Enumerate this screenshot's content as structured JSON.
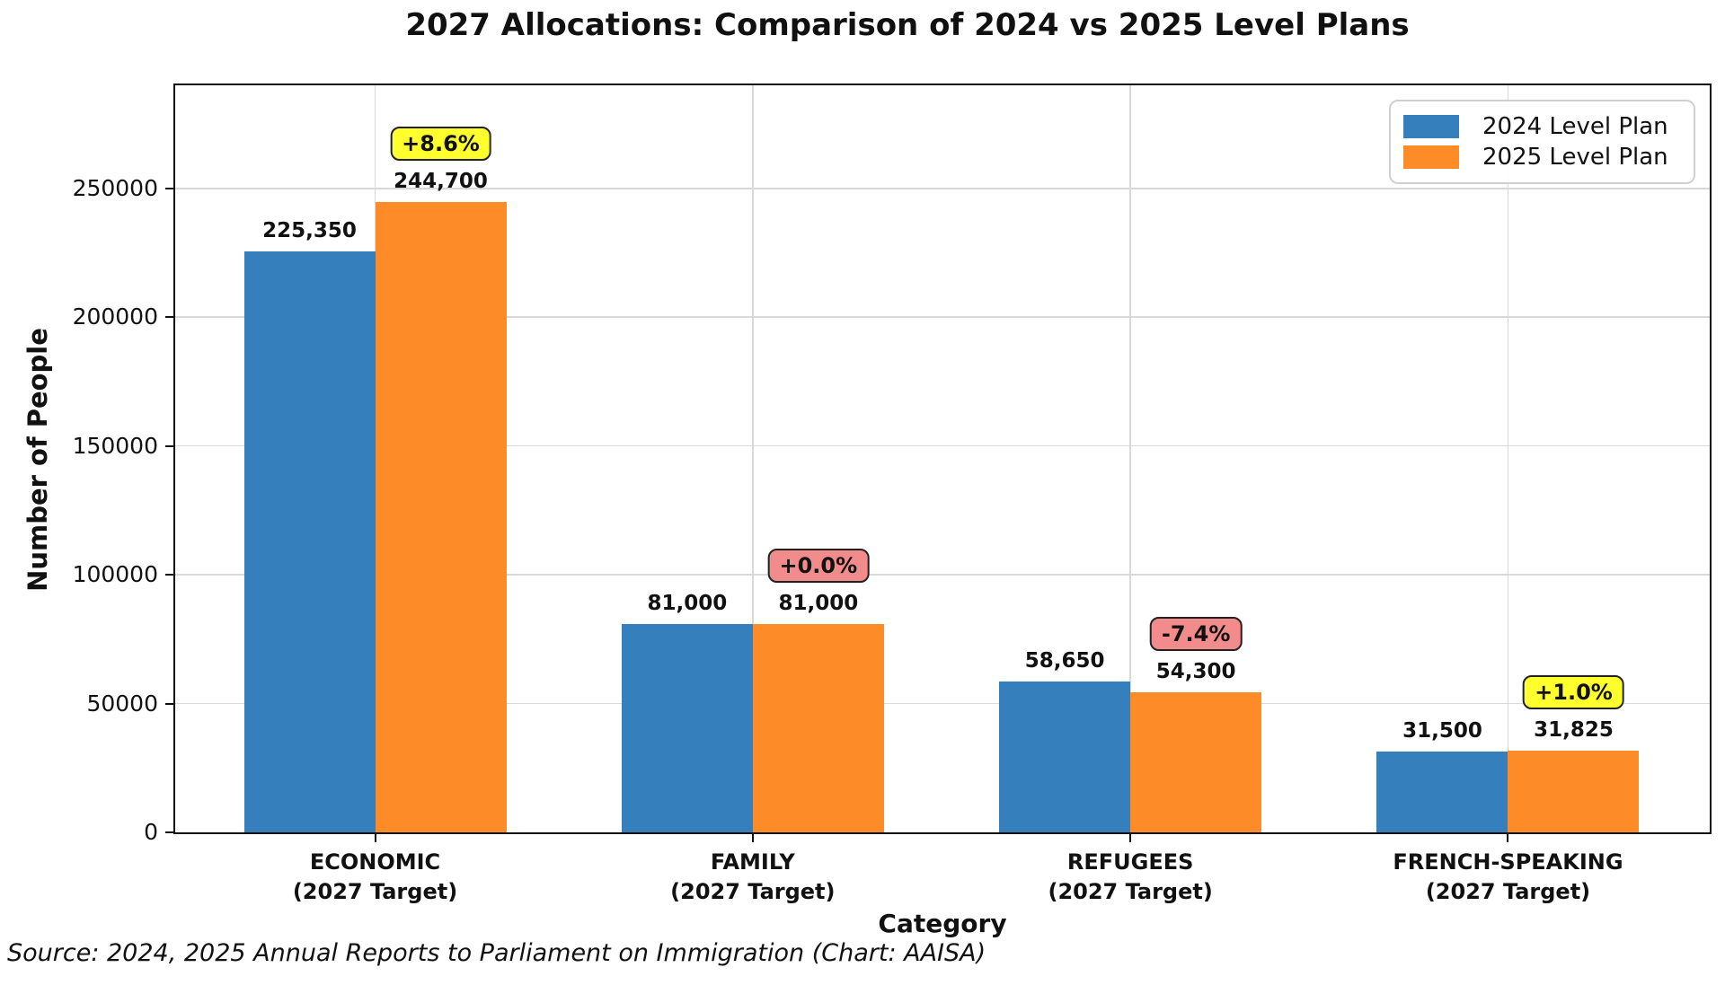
{
  "figure": {
    "source_note": "Source: 2024, 2025 Annual Reports to Parliament on Immigration (Chart: AAISA)"
  },
  "chart_data": {
    "type": "bar",
    "title": "2027 Allocations: Comparison of 2024 vs 2025 Level Plans",
    "xlabel": "Category",
    "ylabel": "Number of People",
    "ylim": [
      0,
      290000
    ],
    "yticks": [
      {
        "value": 0,
        "label": "0"
      },
      {
        "value": 50000,
        "label": "50000"
      },
      {
        "value": 100000,
        "label": "100000"
      },
      {
        "value": 150000,
        "label": "150000"
      },
      {
        "value": 200000,
        "label": "200000"
      },
      {
        "value": 250000,
        "label": "250000"
      }
    ],
    "grid": true,
    "legend_position": "upper right",
    "categories": [
      {
        "name": "ECONOMIC",
        "sub": "(2027 Target)"
      },
      {
        "name": "FAMILY",
        "sub": "(2027 Target)"
      },
      {
        "name": "REFUGEES",
        "sub": "(2027 Target)"
      },
      {
        "name": "FRENCH-SPEAKING",
        "sub": "(2027 Target)"
      }
    ],
    "series": [
      {
        "name": "2024 Level Plan",
        "color": "#3580BC",
        "values": [
          225350,
          81000,
          58650,
          31500
        ],
        "labels": [
          "225,350",
          "81,000",
          "58,650",
          "31,500"
        ]
      },
      {
        "name": "2025 Level Plan",
        "color": "#FD8C28",
        "values": [
          244700,
          81000,
          54300,
          31825
        ],
        "labels": [
          "244,700",
          "81,000",
          "54,300",
          "31,825"
        ]
      }
    ],
    "badges": [
      {
        "text": "+8.6%",
        "bg": "#FFFF2E"
      },
      {
        "text": "+0.0%",
        "bg": "#F28C8C"
      },
      {
        "text": "-7.4%",
        "bg": "#F28C8C"
      },
      {
        "text": "+1.0%",
        "bg": "#FFFF2E"
      }
    ]
  }
}
